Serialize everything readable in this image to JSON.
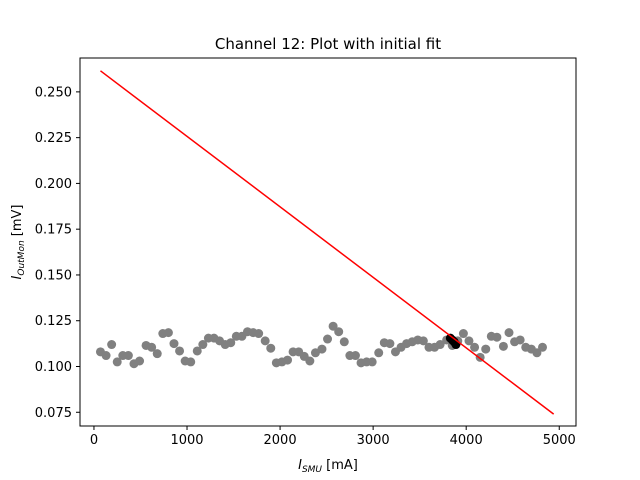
{
  "chart_data": {
    "type": "scatter",
    "title": "Channel 12: Plot with initial fit",
    "xlabel": {
      "main": "I",
      "sub": "SMU",
      "unit": " [mA]"
    },
    "ylabel": {
      "main": "I",
      "sub": "OutMon",
      "unit": " [mV]"
    },
    "xlim": [
      -150,
      5180
    ],
    "ylim": [
      0.0675,
      0.2685
    ],
    "x_ticks": [
      0,
      1000,
      2000,
      3000,
      4000,
      5000
    ],
    "x_tick_labels": [
      "0",
      "1000",
      "2000",
      "3000",
      "4000",
      "5000"
    ],
    "y_ticks": [
      0.075,
      0.1,
      0.125,
      0.15,
      0.175,
      0.2,
      0.225,
      0.25
    ],
    "y_tick_labels": [
      "0.075",
      "0.100",
      "0.125",
      "0.150",
      "0.175",
      "0.200",
      "0.225",
      "0.250"
    ],
    "grid": false,
    "series": [
      {
        "type": "scatter",
        "color": "#808080",
        "points": [
          [
            70,
            0.108
          ],
          [
            130,
            0.106
          ],
          [
            190,
            0.112
          ],
          [
            250,
            0.1025
          ],
          [
            310,
            0.106
          ],
          [
            370,
            0.106
          ],
          [
            430,
            0.1015
          ],
          [
            490,
            0.103
          ],
          [
            560,
            0.1115
          ],
          [
            620,
            0.1105
          ],
          [
            680,
            0.107
          ],
          [
            740,
            0.118
          ],
          [
            800,
            0.1185
          ],
          [
            860,
            0.1125
          ],
          [
            920,
            0.1085
          ],
          [
            980,
            0.103
          ],
          [
            1040,
            0.1025
          ],
          [
            1110,
            0.1085
          ],
          [
            1170,
            0.112
          ],
          [
            1230,
            0.1155
          ],
          [
            1290,
            0.1155
          ],
          [
            1350,
            0.114
          ],
          [
            1410,
            0.112
          ],
          [
            1470,
            0.113
          ],
          [
            1530,
            0.1165
          ],
          [
            1590,
            0.1165
          ],
          [
            1650,
            0.119
          ],
          [
            1710,
            0.1185
          ],
          [
            1770,
            0.118
          ],
          [
            1840,
            0.114
          ],
          [
            1900,
            0.11
          ],
          [
            1960,
            0.102
          ],
          [
            2020,
            0.1025
          ],
          [
            2080,
            0.1035
          ],
          [
            2140,
            0.108
          ],
          [
            2200,
            0.108
          ],
          [
            2260,
            0.1055
          ],
          [
            2320,
            0.103
          ],
          [
            2380,
            0.1075
          ],
          [
            2450,
            0.1095
          ],
          [
            2510,
            0.115
          ],
          [
            2570,
            0.122
          ],
          [
            2630,
            0.119
          ],
          [
            2690,
            0.1135
          ],
          [
            2750,
            0.106
          ],
          [
            2810,
            0.106
          ],
          [
            2870,
            0.102
          ],
          [
            2930,
            0.1025
          ],
          [
            2990,
            0.1025
          ],
          [
            3060,
            0.1075
          ],
          [
            3120,
            0.113
          ],
          [
            3180,
            0.1125
          ],
          [
            3240,
            0.108
          ],
          [
            3300,
            0.1105
          ],
          [
            3360,
            0.1125
          ],
          [
            3420,
            0.1135
          ],
          [
            3480,
            0.1145
          ],
          [
            3540,
            0.114
          ],
          [
            3600,
            0.1105
          ],
          [
            3660,
            0.1105
          ],
          [
            3720,
            0.112
          ],
          [
            3790,
            0.1145
          ],
          [
            3850,
            0.1115
          ],
          [
            3910,
            0.114
          ],
          [
            3970,
            0.118
          ],
          [
            4030,
            0.114
          ],
          [
            4090,
            0.1105
          ],
          [
            4150,
            0.105
          ],
          [
            4210,
            0.1095
          ],
          [
            4270,
            0.1165
          ],
          [
            4330,
            0.116
          ],
          [
            4400,
            0.111
          ],
          [
            4460,
            0.1185
          ],
          [
            4520,
            0.1135
          ],
          [
            4580,
            0.1145
          ],
          [
            4640,
            0.1105
          ],
          [
            4700,
            0.1095
          ],
          [
            4760,
            0.1075
          ],
          [
            4820,
            0.1105
          ]
        ]
      },
      {
        "type": "scatter",
        "color": "#000000",
        "points": [
          [
            3830,
            0.1155
          ],
          [
            3850,
            0.1145
          ],
          [
            3870,
            0.1135
          ],
          [
            3890,
            0.112
          ]
        ]
      },
      {
        "type": "line",
        "color": "#ff0000",
        "points": [
          [
            70,
            0.2615
          ],
          [
            4940,
            0.074
          ]
        ]
      }
    ]
  }
}
